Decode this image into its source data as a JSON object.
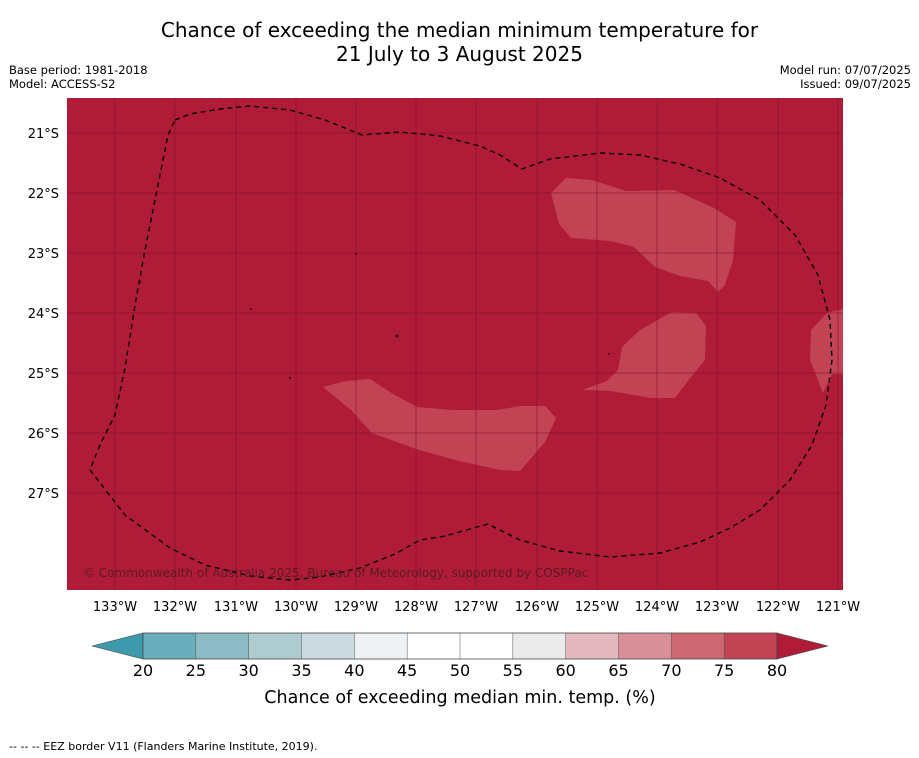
{
  "header": {
    "title_line1": "Chance of exceeding the median minimum temperature for",
    "title_line2": "21 July to 3 August 2025",
    "base_period": "Base period: 1981-2018",
    "model": "Model: ACCESS-S2",
    "model_run": "Model run: 07/07/2025",
    "issued": "Issued: 09/07/2025"
  },
  "map": {
    "latitude_labels": [
      "21°S",
      "22°S",
      "23°S",
      "24°S",
      "25°S",
      "26°S",
      "27°S"
    ],
    "longitude_labels": [
      "133°W",
      "132°W",
      "131°W",
      "130°W",
      "129°W",
      "128°W",
      "127°W",
      "126°W",
      "125°W",
      "124°W",
      "123°W",
      "122°W",
      "121°W"
    ],
    "background_category": "75-80 and above",
    "copyright": "© Commonwealth of Australia 2025, Bureau of Meteorology, supported by COSPPac"
  },
  "colorbar": {
    "ticks": [
      "20",
      "25",
      "30",
      "35",
      "40",
      "45",
      "50",
      "55",
      "60",
      "65",
      "70",
      "75",
      "80"
    ],
    "colors": [
      "#6aaebe",
      "#8cbac5",
      "#aecbd0",
      "#ccdbdf",
      "#eef2f4",
      "#ffffff",
      "#ffffff",
      "#ebebeb",
      "#e3b9bf",
      "#d88f97",
      "#cc6773",
      "#c14354"
    ],
    "under_color": "#3d9aac",
    "over_color": "#b01c38",
    "label": "Chance of exceeding median min. temp. (%)"
  },
  "legend": {
    "footnote": "--  --  -- EEZ border V11 (Flanders Marine Institute, 2019)."
  }
}
